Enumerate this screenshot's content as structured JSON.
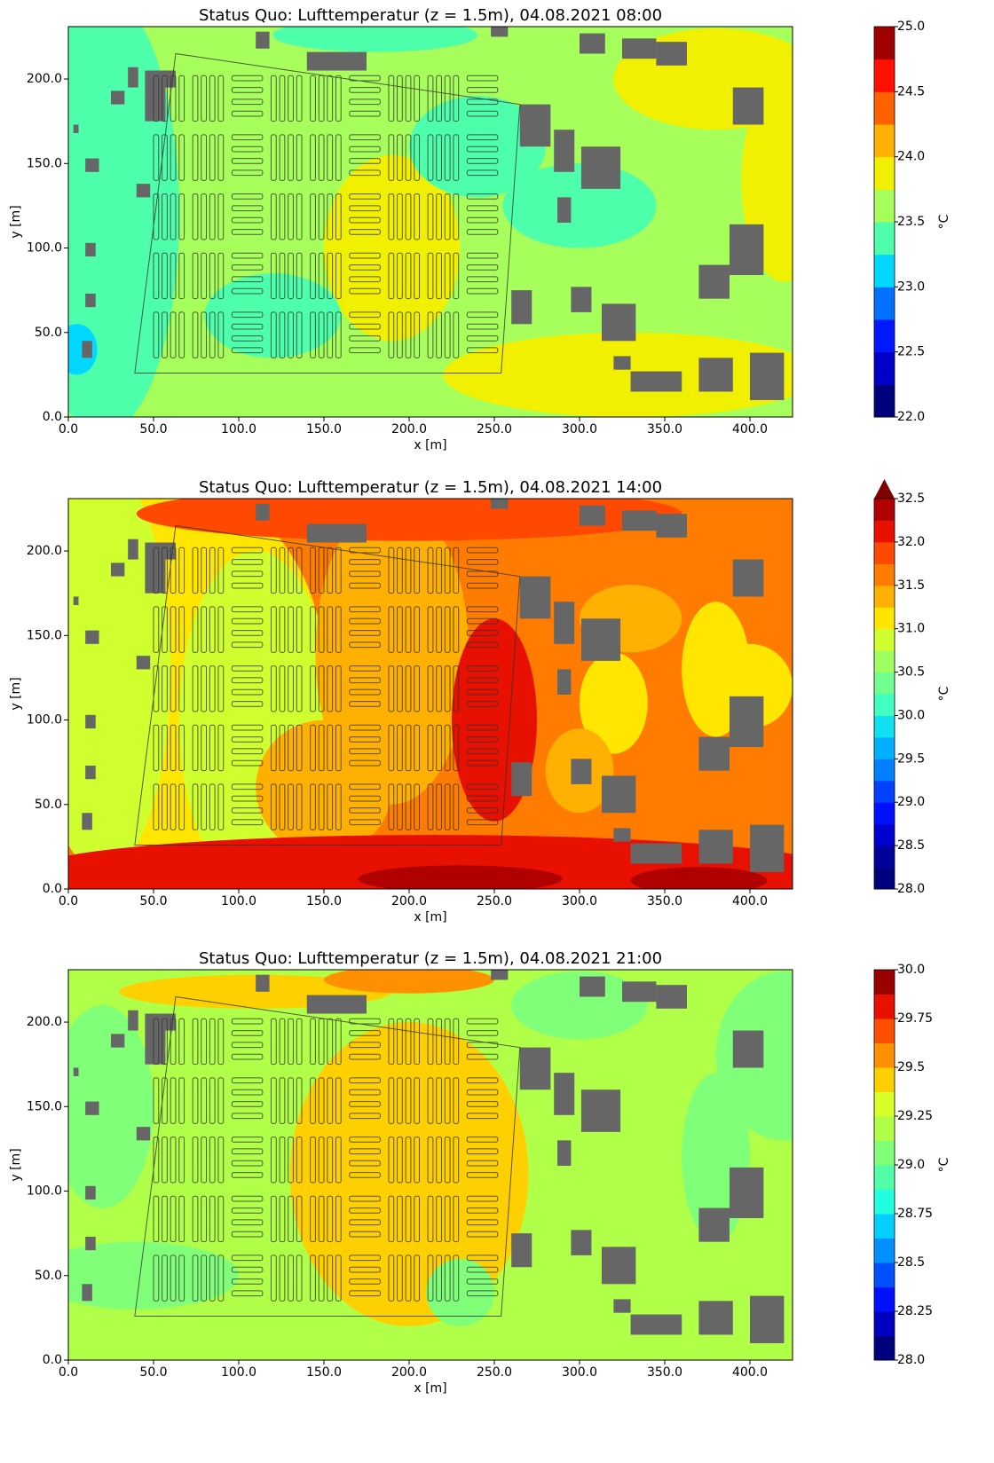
{
  "chart_data": [
    {
      "type": "heatmap",
      "title": "Status Quo: Lufttemperatur (z = 1.5m), 04.08.2021 08:00",
      "xlabel": "x [m]",
      "ylabel": "y [m]",
      "colorbar_label": "°C",
      "xlim": [
        0,
        425
      ],
      "ylim": [
        0,
        231
      ],
      "xticks": [
        {
          "value": 0,
          "label": "0.0"
        },
        {
          "value": 50,
          "label": "50.0"
        },
        {
          "value": 100,
          "label": "100.0"
        },
        {
          "value": 150,
          "label": "150.0"
        },
        {
          "value": 200,
          "label": "200.0"
        },
        {
          "value": 250,
          "label": "250.0"
        },
        {
          "value": 300,
          "label": "300.0"
        },
        {
          "value": 350,
          "label": "350.0"
        },
        {
          "value": 400,
          "label": "400.0"
        }
      ],
      "yticks": [
        {
          "value": 0,
          "label": "0.0"
        },
        {
          "value": 50,
          "label": "50.0"
        },
        {
          "value": 100,
          "label": "100.0"
        },
        {
          "value": 150,
          "label": "150.0"
        },
        {
          "value": 200,
          "label": "200.0"
        }
      ],
      "zlim": [
        22,
        25
      ],
      "zticks": [
        {
          "value": 22,
          "label": "22.0"
        },
        22.5,
        {
          "value": 23,
          "label": "23.0"
        },
        23.5,
        {
          "value": 24,
          "label": "24.0"
        },
        24.5,
        {
          "value": 25,
          "label": "25.0"
        }
      ],
      "colors": [
        "#00007f",
        "#0000c8",
        "#0018ff",
        "#0070ff",
        "#00d8ff",
        "#4dffaa",
        "#a6ff5a",
        "#f0f000",
        "#ffb000",
        "#ff6000",
        "#ff1000",
        "#a00000"
      ]
    },
    {
      "type": "heatmap",
      "title": "Status Quo: Lufttemperatur (z = 1.5m), 04.08.2021 14:00",
      "xlabel": "x [m]",
      "ylabel": "y [m]",
      "colorbar_label": "°C",
      "xlim": [
        0,
        425
      ],
      "ylim": [
        0,
        231
      ],
      "xticks": [
        {
          "value": 0,
          "label": "0.0"
        },
        {
          "value": 50,
          "label": "50.0"
        },
        {
          "value": 100,
          "label": "100.0"
        },
        {
          "value": 150,
          "label": "150.0"
        },
        {
          "value": 200,
          "label": "200.0"
        },
        {
          "value": 250,
          "label": "250.0"
        },
        {
          "value": 300,
          "label": "300.0"
        },
        {
          "value": 350,
          "label": "350.0"
        },
        {
          "value": 400,
          "label": "400.0"
        }
      ],
      "yticks": [
        {
          "value": 0,
          "label": "0.0"
        },
        {
          "value": 50,
          "label": "50.0"
        },
        {
          "value": 100,
          "label": "100.0"
        },
        {
          "value": 150,
          "label": "150.0"
        },
        {
          "value": 200,
          "label": "200.0"
        }
      ],
      "zlim": [
        28,
        32.5
      ],
      "extend_color": "#800000",
      "zticks": [
        {
          "value": 28,
          "label": "28.0"
        },
        28.5,
        {
          "value": 29,
          "label": "29.0"
        },
        29.5,
        {
          "value": 30,
          "label": "30.0"
        },
        30.5,
        {
          "value": 31,
          "label": "31.0"
        },
        31.5,
        {
          "value": 32,
          "label": "32.0"
        },
        32.5
      ],
      "colors": [
        "#00007f",
        "#00009a",
        "#0000d0",
        "#0010ff",
        "#0040ff",
        "#0080ff",
        "#00b0ff",
        "#10e0f0",
        "#40ffc0",
        "#70ff90",
        "#a0ff60",
        "#d0ff30",
        "#ffe600",
        "#ffb000",
        "#ff7c00",
        "#ff4800",
        "#e81000",
        "#b00000"
      ]
    },
    {
      "type": "heatmap",
      "title": "Status Quo: Lufttemperatur (z = 1.5m), 04.08.2021 21:00",
      "xlabel": "x [m]",
      "ylabel": "y [m]",
      "colorbar_label": "°C",
      "xlim": [
        0,
        425
      ],
      "ylim": [
        0,
        231
      ],
      "xticks": [
        {
          "value": 0,
          "label": "0.0"
        },
        {
          "value": 50,
          "label": "50.0"
        },
        {
          "value": 100,
          "label": "100.0"
        },
        {
          "value": 150,
          "label": "150.0"
        },
        {
          "value": 200,
          "label": "200.0"
        },
        {
          "value": 250,
          "label": "250.0"
        },
        {
          "value": 300,
          "label": "300.0"
        },
        {
          "value": 350,
          "label": "350.0"
        },
        {
          "value": 400,
          "label": "400.0"
        }
      ],
      "yticks": [
        {
          "value": 0,
          "label": "0.0"
        },
        {
          "value": 50,
          "label": "50.0"
        },
        {
          "value": 100,
          "label": "100.0"
        },
        {
          "value": 150,
          "label": "150.0"
        },
        {
          "value": 200,
          "label": "200.0"
        }
      ],
      "zlim": [
        28,
        30
      ],
      "zticks": [
        {
          "value": 28,
          "label": "28.0"
        },
        28.25,
        28.5,
        28.75,
        {
          "value": 29,
          "label": "29.0"
        },
        29.25,
        29.5,
        29.75,
        {
          "value": 30,
          "label": "30.0"
        }
      ],
      "colors": [
        "#00007f",
        "#0000c0",
        "#0010ff",
        "#0050ff",
        "#0090ff",
        "#00d0ff",
        "#20ffe0",
        "#50ffa8",
        "#80ff78",
        "#b0ff48",
        "#d8ff28",
        "#ffd000",
        "#ff9000",
        "#ff5000",
        "#e81000",
        "#9a0000"
      ]
    }
  ]
}
